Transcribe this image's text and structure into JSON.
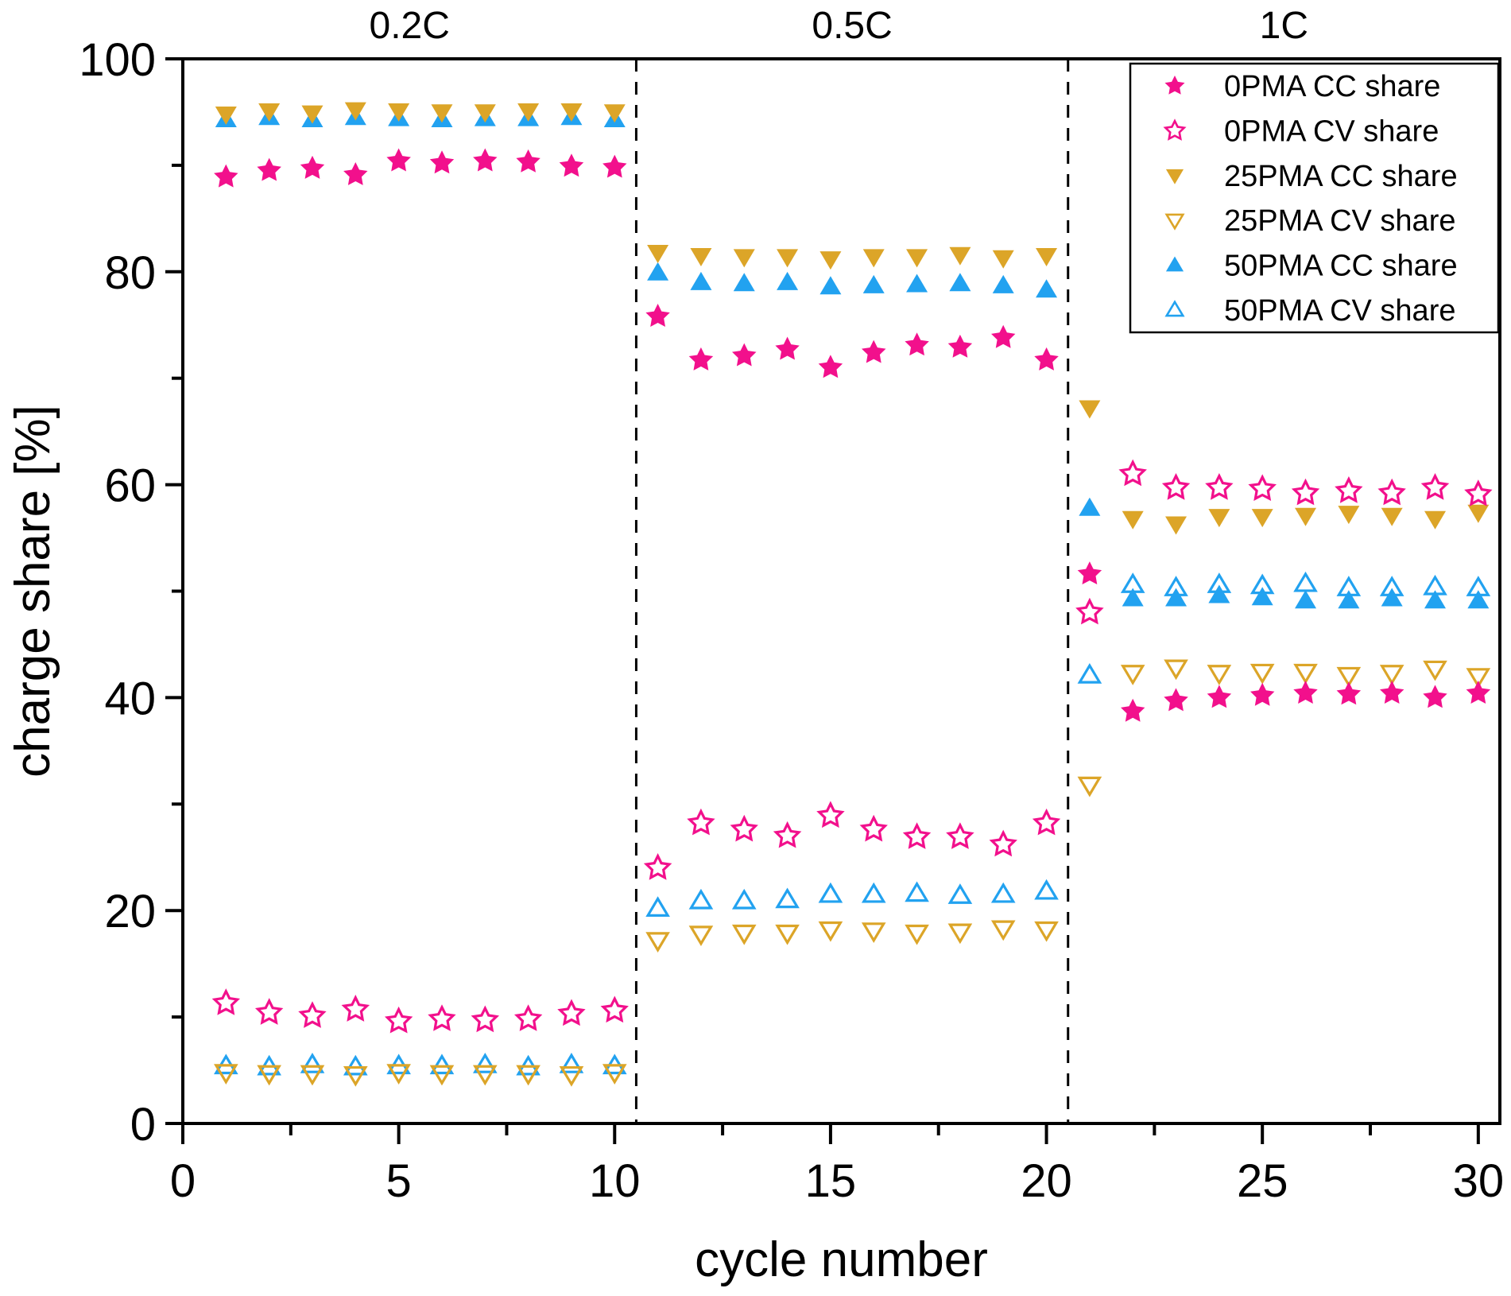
{
  "figure": {
    "background": "#ffffff",
    "frame_color": "#000000",
    "region_divider_style": "dashed"
  },
  "chart_data": {
    "type": "scatter",
    "title": "",
    "xlabel": "cycle number",
    "ylabel": "charge share [%]",
    "xlim": [
      0,
      30.5
    ],
    "ylim": [
      0,
      100
    ],
    "x_ticks": [
      0,
      5,
      10,
      15,
      20,
      25,
      30
    ],
    "y_ticks": [
      0,
      20,
      40,
      60,
      80,
      100
    ],
    "x_minor_ticks": [
      2.5,
      7.5,
      12.5,
      17.5,
      22.5,
      27.5
    ],
    "y_minor_ticks": [
      10,
      30,
      50,
      70,
      90
    ],
    "grid": false,
    "legend_position": "top-right",
    "region_dividers_x": [
      10.5,
      20.5
    ],
    "regions": [
      {
        "label": "0.2C",
        "center_x": 5.25
      },
      {
        "label": "0.5C",
        "center_x": 15.5
      },
      {
        "label": "1C",
        "center_x": 25.5
      }
    ],
    "x": [
      1,
      2,
      3,
      4,
      5,
      6,
      7,
      8,
      9,
      10,
      11,
      12,
      13,
      14,
      15,
      16,
      17,
      18,
      19,
      20,
      21,
      22,
      23,
      24,
      25,
      26,
      27,
      28,
      29,
      30
    ],
    "series": [
      {
        "name": "0PMA CC share",
        "marker": "star",
        "fill": "filled",
        "color": "#F2108C",
        "values": [
          88.9,
          89.5,
          89.7,
          89.1,
          90.4,
          90.2,
          90.4,
          90.3,
          89.9,
          89.8,
          75.8,
          71.7,
          72.1,
          72.7,
          71.0,
          72.4,
          73.1,
          72.9,
          73.8,
          71.7,
          51.6,
          38.7,
          39.7,
          40.0,
          40.2,
          40.4,
          40.3,
          40.4,
          40.0,
          40.4
        ]
      },
      {
        "name": "0PMA CV share",
        "marker": "star",
        "fill": "open",
        "color": "#F2108C",
        "values": [
          11.3,
          10.4,
          10.1,
          10.7,
          9.6,
          9.8,
          9.7,
          9.8,
          10.3,
          10.6,
          24.0,
          28.2,
          27.6,
          27.0,
          28.9,
          27.6,
          26.9,
          26.9,
          26.2,
          28.2,
          48.0,
          61.0,
          59.7,
          59.7,
          59.6,
          59.2,
          59.4,
          59.2,
          59.7,
          59.1
        ]
      },
      {
        "name": "25PMA CC share",
        "marker": "triangle-down",
        "fill": "filled",
        "color": "#DCA528",
        "values": [
          94.8,
          95.1,
          94.9,
          95.2,
          95.1,
          95.0,
          95.0,
          95.1,
          95.1,
          95.0,
          81.8,
          81.5,
          81.4,
          81.4,
          81.2,
          81.4,
          81.4,
          81.6,
          81.3,
          81.5,
          67.2,
          56.8,
          56.3,
          57.0,
          57.0,
          57.1,
          57.3,
          57.1,
          56.8,
          57.4
        ]
      },
      {
        "name": "25PMA CV share",
        "marker": "triangle-down",
        "fill": "open",
        "color": "#DCA528",
        "values": [
          4.8,
          4.7,
          4.7,
          4.6,
          4.8,
          4.7,
          4.7,
          4.7,
          4.6,
          4.8,
          17.2,
          17.8,
          17.9,
          17.9,
          18.2,
          18.1,
          17.9,
          18.0,
          18.3,
          18.2,
          31.8,
          42.3,
          42.8,
          42.3,
          42.4,
          42.4,
          42.1,
          42.3,
          42.7,
          42.0
        ]
      },
      {
        "name": "50PMA CC share",
        "marker": "triangle-up",
        "fill": "filled",
        "color": "#22A2F0",
        "values": [
          94.3,
          94.5,
          94.3,
          94.5,
          94.4,
          94.3,
          94.4,
          94.4,
          94.5,
          94.3,
          79.9,
          79.0,
          78.9,
          79.0,
          78.6,
          78.7,
          78.8,
          78.9,
          78.7,
          78.3,
          57.8,
          49.3,
          49.3,
          49.6,
          49.4,
          49.1,
          49.1,
          49.3,
          49.1,
          49.1
        ]
      },
      {
        "name": "50PMA CV share",
        "marker": "triangle-up",
        "fill": "open",
        "color": "#22A2F0",
        "values": [
          5.4,
          5.3,
          5.5,
          5.3,
          5.4,
          5.4,
          5.5,
          5.3,
          5.5,
          5.4,
          20.2,
          20.9,
          20.9,
          21.0,
          21.5,
          21.5,
          21.6,
          21.4,
          21.5,
          21.8,
          42.1,
          50.6,
          50.3,
          50.6,
          50.5,
          50.7,
          50.3,
          50.3,
          50.4,
          50.3
        ]
      }
    ]
  }
}
